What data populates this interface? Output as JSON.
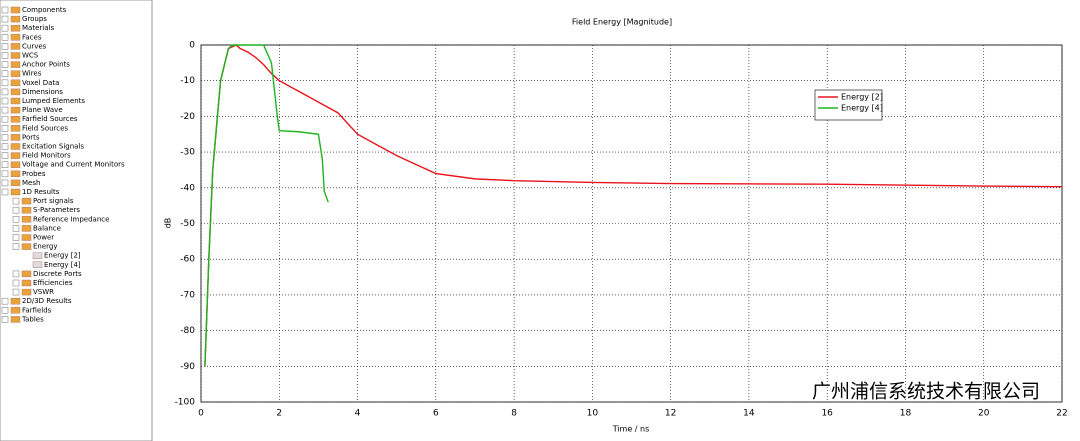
{
  "tree": {
    "items": [
      {
        "label": "Components",
        "level": 0
      },
      {
        "label": "Groups",
        "level": 0
      },
      {
        "label": "Materials",
        "level": 0
      },
      {
        "label": "Faces",
        "level": 0
      },
      {
        "label": "Curves",
        "level": 0
      },
      {
        "label": "WCS",
        "level": 0
      },
      {
        "label": "Anchor Points",
        "level": 0
      },
      {
        "label": "Wires",
        "level": 0
      },
      {
        "label": "Voxel Data",
        "level": 0
      },
      {
        "label": "Dimensions",
        "level": 0
      },
      {
        "label": "Lumped Elements",
        "level": 0
      },
      {
        "label": "Plane Wave",
        "level": 0
      },
      {
        "label": "Farfield Sources",
        "level": 0
      },
      {
        "label": "Field Sources",
        "level": 0
      },
      {
        "label": "Ports",
        "level": 0
      },
      {
        "label": "Excitation Signals",
        "level": 0
      },
      {
        "label": "Field Monitors",
        "level": 0
      },
      {
        "label": "Voltage and Current Monitors",
        "level": 0
      },
      {
        "label": "Probes",
        "level": 0
      },
      {
        "label": "Mesh",
        "level": 0
      },
      {
        "label": "1D Results",
        "level": 0
      },
      {
        "label": "Port signals",
        "level": 1
      },
      {
        "label": "S-Parameters",
        "level": 1
      },
      {
        "label": "Reference Impedance",
        "level": 1
      },
      {
        "label": "Balance",
        "level": 1
      },
      {
        "label": "Power",
        "level": 1
      },
      {
        "label": "Energy",
        "level": 1
      },
      {
        "label": "Energy [2]",
        "level": 2
      },
      {
        "label": "Energy [4]",
        "level": 2
      },
      {
        "label": "Discrete Ports",
        "level": 1
      },
      {
        "label": "Efficiencies",
        "level": 1
      },
      {
        "label": "VSWR",
        "level": 1
      },
      {
        "label": "2D/3D Results",
        "level": 0
      },
      {
        "label": "Farfields",
        "level": 0
      },
      {
        "label": "Tables",
        "level": 0
      }
    ]
  },
  "chart_data": {
    "type": "line",
    "title": "Field Energy [Magnitude]",
    "x_label": "Time / ns",
    "y_label": "dB",
    "xlim": [
      0,
      22
    ],
    "ylim": [
      -100,
      0
    ],
    "xticks": [
      0,
      2,
      4,
      6,
      8,
      10,
      12,
      14,
      16,
      18,
      20,
      22
    ],
    "yticks": [
      0,
      -10,
      -20,
      -30,
      -40,
      -50,
      -60,
      -70,
      -80,
      -90,
      -100
    ],
    "grid": true,
    "legend": "upper-right",
    "series": [
      {
        "name": "Energy [2]",
        "color": "#e8141b",
        "x": [
          0.1,
          0.2,
          0.3,
          0.5,
          0.7,
          0.9,
          1.0,
          1.2,
          1.4,
          1.6,
          1.8,
          2,
          2.5,
          3,
          3.5,
          4,
          4.5,
          5,
          5.5,
          6,
          7,
          8,
          10,
          12,
          16,
          20,
          22
        ],
        "values": [
          -90,
          -60,
          -35,
          -10,
          -1,
          0,
          -1,
          -2,
          -3.5,
          -5.5,
          -8,
          -10,
          -13,
          -16,
          -19,
          -25,
          -28,
          -31,
          -33.5,
          -36,
          -37.5,
          -38,
          -38.5,
          -38.8,
          -39,
          -39.5,
          -39.7
        ]
      },
      {
        "name": "Energy [4]",
        "color": "#1fb41f",
        "x": [
          0.1,
          0.2,
          0.3,
          0.5,
          0.7,
          0.8,
          1.6,
          1.8,
          1.95,
          2,
          2.5,
          3,
          3.1,
          3.15,
          3.25
        ],
        "values": [
          -90,
          -60,
          -35,
          -10,
          -1,
          0,
          0,
          -5,
          -20,
          -24,
          -24.3,
          -25,
          -32,
          -41,
          -44
        ]
      }
    ]
  },
  "watermark": "广州浦信系统技术有限公司"
}
